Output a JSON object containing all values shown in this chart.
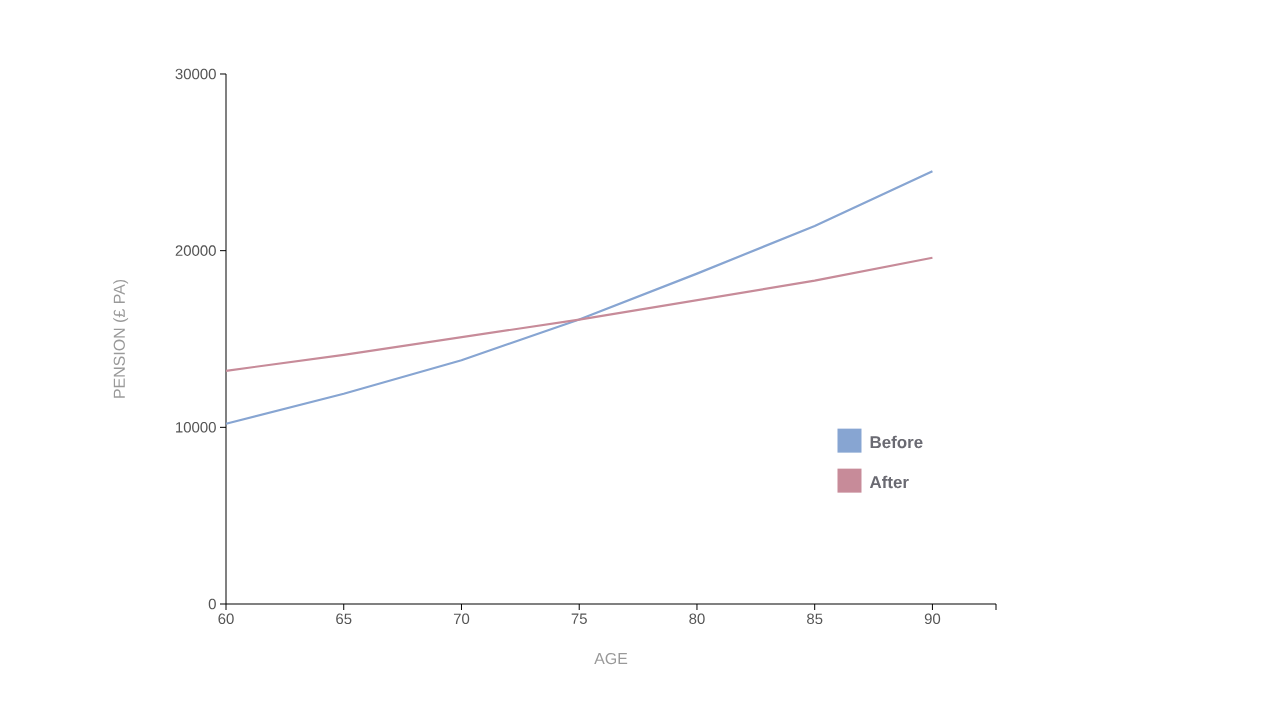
{
  "chart_data": {
    "type": "line",
    "xlabel": "AGE",
    "ylabel": "PENSION (£ PA)",
    "x": [
      60,
      65,
      70,
      75,
      80,
      85,
      90
    ],
    "series": [
      {
        "name": "Before",
        "color": "#87a5d2",
        "values": [
          10200,
          11900,
          13800,
          16100,
          18700,
          21400,
          24500
        ]
      },
      {
        "name": "After",
        "color": "#c78b99",
        "values": [
          13200,
          14100,
          15100,
          16100,
          17200,
          18300,
          19600
        ]
      }
    ],
    "xlim": [
      60,
      92.7
    ],
    "xticks": [
      60,
      65,
      70,
      75,
      80,
      85,
      90,
      {
        "value": 92.7,
        "label": null
      }
    ],
    "ylim": [
      0,
      30000
    ],
    "yticks": [
      0,
      10000,
      20000,
      30000
    ],
    "grid": false,
    "legend": "right",
    "marker": "none",
    "line_style": "solid"
  }
}
